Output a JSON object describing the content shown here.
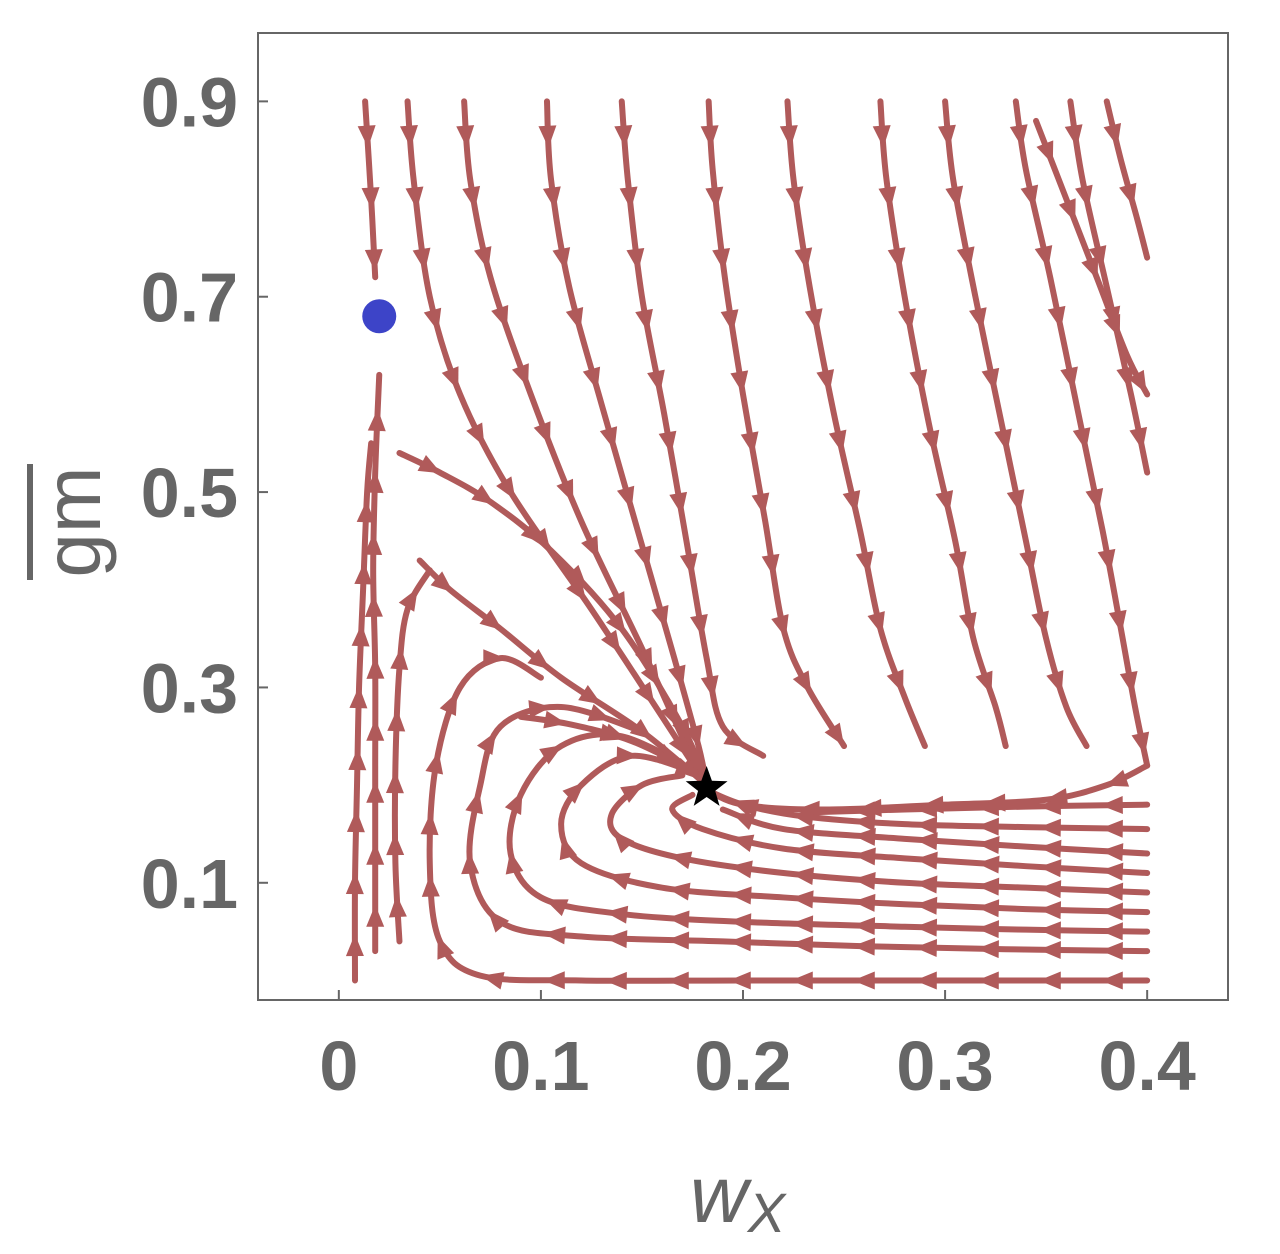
{
  "chart_data": {
    "type": "streamplot",
    "title": "",
    "xlabel": "w",
    "xlabel_sub": "X",
    "ylabel": "gm",
    "ylabel_overbar": true,
    "xlim": [
      -0.04,
      0.44
    ],
    "ylim": [
      -0.02,
      0.97
    ],
    "xticks": [
      {
        "value": 0,
        "label": "0"
      },
      {
        "value": 0.1,
        "label": "0.1"
      },
      {
        "value": 0.2,
        "label": "0.2"
      },
      {
        "value": 0.3,
        "label": "0.3"
      },
      {
        "value": 0.4,
        "label": "0.4"
      }
    ],
    "yticks": [
      {
        "value": 0.1,
        "label": "0.1"
      },
      {
        "value": 0.3,
        "label": "0.3"
      },
      {
        "value": 0.5,
        "label": "0.5"
      },
      {
        "value": 0.7,
        "label": "0.7"
      },
      {
        "value": 0.9,
        "label": "0.9"
      }
    ],
    "grid": false,
    "stream_color": "#b05a5a",
    "stream_region": {
      "x": [
        0,
        0.4
      ],
      "y": [
        0,
        0.9
      ]
    },
    "fixed_point_star": {
      "x": 0.182,
      "y": 0.197,
      "color": "#000000"
    },
    "point_circle": {
      "x": 0.02,
      "y": 0.68,
      "color": "#3d44c8"
    },
    "streamlines": [
      [
        [
          0.013,
          0.9
        ],
        [
          0.016,
          0.8
        ],
        [
          0.018,
          0.72
        ]
      ],
      [
        [
          0.034,
          0.9
        ],
        [
          0.037,
          0.82
        ],
        [
          0.045,
          0.7
        ],
        [
          0.06,
          0.6
        ],
        [
          0.085,
          0.5
        ],
        [
          0.125,
          0.38
        ],
        [
          0.16,
          0.27
        ],
        [
          0.182,
          0.2
        ]
      ],
      [
        [
          0.062,
          0.9
        ],
        [
          0.065,
          0.82
        ],
        [
          0.075,
          0.72
        ],
        [
          0.095,
          0.6
        ],
        [
          0.12,
          0.47
        ],
        [
          0.15,
          0.34
        ],
        [
          0.172,
          0.24
        ],
        [
          0.182,
          0.2
        ]
      ],
      [
        [
          0.103,
          0.9
        ],
        [
          0.105,
          0.82
        ],
        [
          0.114,
          0.71
        ],
        [
          0.13,
          0.59
        ],
        [
          0.148,
          0.46
        ],
        [
          0.166,
          0.33
        ],
        [
          0.178,
          0.24
        ],
        [
          0.182,
          0.2
        ]
      ],
      [
        [
          0.14,
          0.9
        ],
        [
          0.143,
          0.82
        ],
        [
          0.15,
          0.7
        ],
        [
          0.161,
          0.58
        ],
        [
          0.172,
          0.45
        ],
        [
          0.182,
          0.33
        ],
        [
          0.19,
          0.26
        ],
        [
          0.21,
          0.23
        ]
      ],
      [
        [
          0.183,
          0.9
        ],
        [
          0.185,
          0.83
        ],
        [
          0.191,
          0.72
        ],
        [
          0.2,
          0.6
        ],
        [
          0.211,
          0.47
        ],
        [
          0.22,
          0.36
        ],
        [
          0.232,
          0.3
        ],
        [
          0.25,
          0.24
        ]
      ],
      [
        [
          0.222,
          0.9
        ],
        [
          0.225,
          0.82
        ],
        [
          0.233,
          0.71
        ],
        [
          0.245,
          0.58
        ],
        [
          0.258,
          0.46
        ],
        [
          0.268,
          0.36
        ],
        [
          0.28,
          0.29
        ],
        [
          0.29,
          0.24
        ]
      ],
      [
        [
          0.268,
          0.9
        ],
        [
          0.271,
          0.82
        ],
        [
          0.28,
          0.7
        ],
        [
          0.292,
          0.57
        ],
        [
          0.305,
          0.45
        ],
        [
          0.314,
          0.35
        ],
        [
          0.325,
          0.28
        ],
        [
          0.33,
          0.24
        ]
      ],
      [
        [
          0.3,
          0.9
        ],
        [
          0.304,
          0.82
        ],
        [
          0.315,
          0.7
        ],
        [
          0.328,
          0.57
        ],
        [
          0.34,
          0.45
        ],
        [
          0.35,
          0.35
        ],
        [
          0.36,
          0.28
        ],
        [
          0.37,
          0.24
        ]
      ],
      [
        [
          0.335,
          0.9
        ],
        [
          0.34,
          0.83
        ],
        [
          0.352,
          0.72
        ],
        [
          0.366,
          0.58
        ],
        [
          0.378,
          0.46
        ],
        [
          0.387,
          0.36
        ],
        [
          0.394,
          0.28
        ],
        [
          0.4,
          0.22
        ]
      ],
      [
        [
          0.362,
          0.9
        ],
        [
          0.368,
          0.82
        ],
        [
          0.38,
          0.71
        ],
        [
          0.392,
          0.6
        ],
        [
          0.4,
          0.52
        ]
      ],
      [
        [
          0.38,
          0.9
        ],
        [
          0.387,
          0.84
        ],
        [
          0.395,
          0.78
        ],
        [
          0.4,
          0.74
        ]
      ],
      [
        [
          0.345,
          0.88
        ],
        [
          0.36,
          0.8
        ],
        [
          0.375,
          0.72
        ],
        [
          0.39,
          0.64
        ],
        [
          0.4,
          0.6
        ]
      ],
      [
        [
          0.4,
          0.22
        ],
        [
          0.38,
          0.2
        ],
        [
          0.35,
          0.185
        ],
        [
          0.3,
          0.18
        ],
        [
          0.24,
          0.175
        ],
        [
          0.2,
          0.18
        ],
        [
          0.182,
          0.195
        ]
      ],
      [
        [
          0.4,
          0.18
        ],
        [
          0.34,
          0.178
        ],
        [
          0.28,
          0.175
        ],
        [
          0.23,
          0.172
        ]
      ],
      [
        [
          0.4,
          0.155
        ],
        [
          0.34,
          0.157
        ],
        [
          0.28,
          0.16
        ],
        [
          0.23,
          0.168
        ],
        [
          0.2,
          0.18
        ],
        [
          0.182,
          0.195
        ]
      ],
      [
        [
          0.4,
          0.13
        ],
        [
          0.34,
          0.137
        ],
        [
          0.28,
          0.145
        ],
        [
          0.22,
          0.155
        ],
        [
          0.19,
          0.175
        ]
      ],
      [
        [
          0.4,
          0.11
        ],
        [
          0.34,
          0.117
        ],
        [
          0.28,
          0.125
        ],
        [
          0.22,
          0.135
        ],
        [
          0.18,
          0.155
        ],
        [
          0.165,
          0.175
        ],
        [
          0.175,
          0.19
        ]
      ],
      [
        [
          0.4,
          0.09
        ],
        [
          0.34,
          0.095
        ],
        [
          0.28,
          0.1
        ],
        [
          0.22,
          0.11
        ],
        [
          0.17,
          0.125
        ],
        [
          0.14,
          0.145
        ],
        [
          0.135,
          0.17
        ],
        [
          0.15,
          0.2
        ],
        [
          0.17,
          0.21
        ]
      ],
      [
        [
          0.4,
          0.07
        ],
        [
          0.34,
          0.073
        ],
        [
          0.28,
          0.078
        ],
        [
          0.22,
          0.085
        ],
        [
          0.16,
          0.095
        ],
        [
          0.12,
          0.12
        ],
        [
          0.11,
          0.16
        ],
        [
          0.12,
          0.2
        ],
        [
          0.145,
          0.23
        ],
        [
          0.18,
          0.21
        ]
      ],
      [
        [
          0.4,
          0.05
        ],
        [
          0.34,
          0.052
        ],
        [
          0.28,
          0.055
        ],
        [
          0.2,
          0.06
        ],
        [
          0.14,
          0.068
        ],
        [
          0.1,
          0.085
        ],
        [
          0.085,
          0.13
        ],
        [
          0.09,
          0.19
        ],
        [
          0.11,
          0.24
        ],
        [
          0.14,
          0.25
        ],
        [
          0.18,
          0.21
        ]
      ],
      [
        [
          0.4,
          0.03
        ],
        [
          0.33,
          0.032
        ],
        [
          0.26,
          0.035
        ],
        [
          0.19,
          0.04
        ],
        [
          0.12,
          0.045
        ],
        [
          0.08,
          0.06
        ],
        [
          0.065,
          0.12
        ],
        [
          0.07,
          0.2
        ],
        [
          0.08,
          0.26
        ],
        [
          0.11,
          0.28
        ],
        [
          0.15,
          0.255
        ]
      ],
      [
        [
          0.4,
          0.0
        ],
        [
          0.3,
          0.0
        ],
        [
          0.2,
          0.0
        ],
        [
          0.12,
          0.0
        ],
        [
          0.07,
          0.005
        ],
        [
          0.05,
          0.04
        ],
        [
          0.045,
          0.12
        ],
        [
          0.048,
          0.22
        ],
        [
          0.06,
          0.3
        ],
        [
          0.08,
          0.33
        ],
        [
          0.1,
          0.31
        ]
      ],
      [
        [
          0.03,
          0.04
        ],
        [
          0.028,
          0.12
        ],
        [
          0.028,
          0.22
        ],
        [
          0.03,
          0.32
        ],
        [
          0.034,
          0.38
        ],
        [
          0.045,
          0.42
        ]
      ],
      [
        [
          0.018,
          0.03
        ],
        [
          0.018,
          0.12
        ],
        [
          0.018,
          0.22
        ],
        [
          0.018,
          0.32
        ],
        [
          0.017,
          0.42
        ],
        [
          0.018,
          0.52
        ],
        [
          0.02,
          0.62
        ]
      ],
      [
        [
          0.008,
          0.0
        ],
        [
          0.008,
          0.1
        ],
        [
          0.009,
          0.2
        ],
        [
          0.01,
          0.3
        ],
        [
          0.012,
          0.4
        ],
        [
          0.014,
          0.5
        ],
        [
          0.016,
          0.55
        ]
      ],
      [
        [
          0.03,
          0.54
        ],
        [
          0.05,
          0.52
        ],
        [
          0.075,
          0.49
        ],
        [
          0.105,
          0.44
        ],
        [
          0.14,
          0.36
        ],
        [
          0.17,
          0.26
        ],
        [
          0.182,
          0.2
        ]
      ],
      [
        [
          0.04,
          0.43
        ],
        [
          0.055,
          0.4
        ],
        [
          0.08,
          0.36
        ],
        [
          0.11,
          0.31
        ],
        [
          0.15,
          0.255
        ],
        [
          0.182,
          0.2
        ]
      ],
      [
        [
          0.09,
          0.27
        ],
        [
          0.115,
          0.262
        ],
        [
          0.145,
          0.245
        ],
        [
          0.175,
          0.215
        ]
      ]
    ]
  }
}
